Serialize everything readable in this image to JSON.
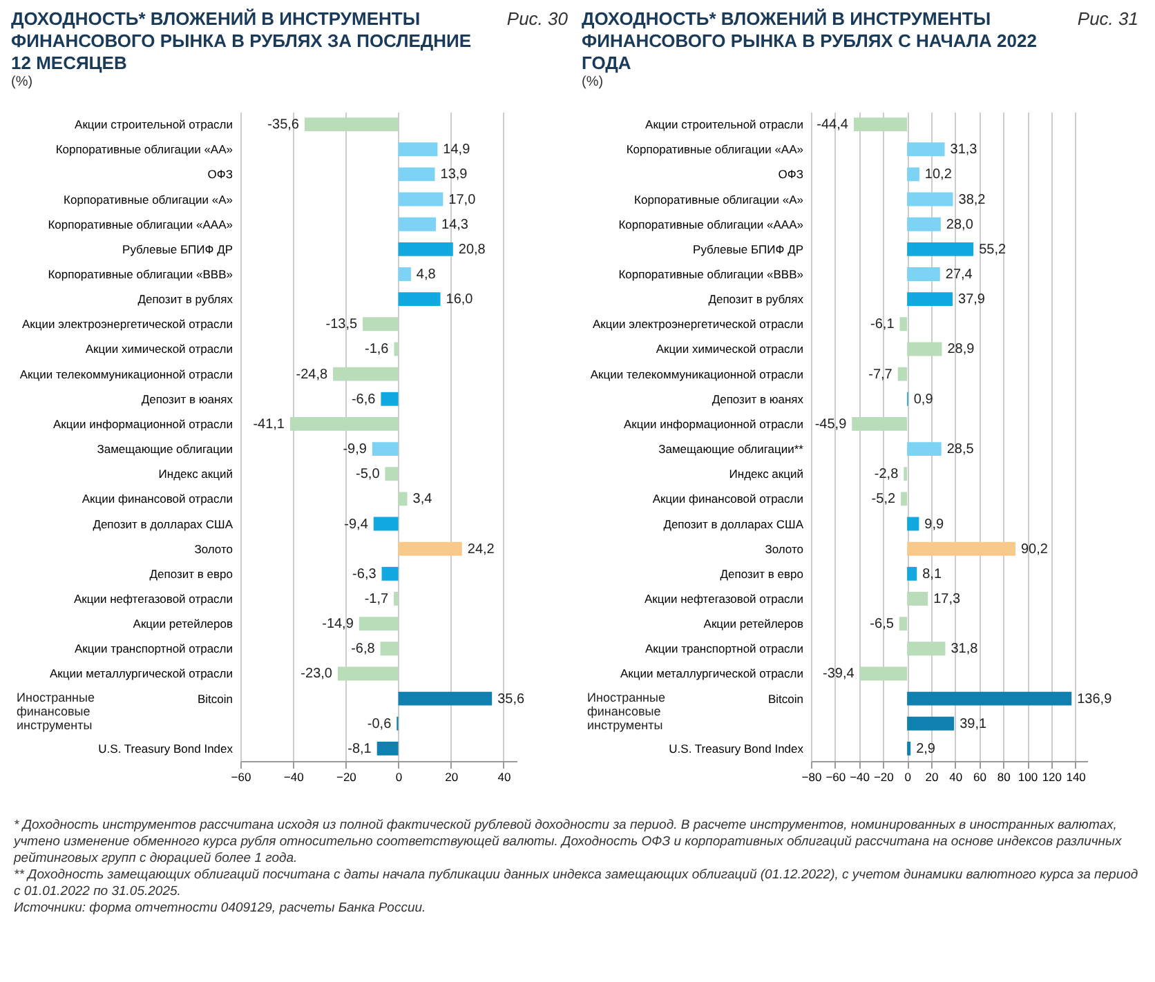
{
  "chart_data": [
    {
      "type": "bar",
      "orientation": "horizontal",
      "title": "ДОХОДНОСТЬ* ВЛОЖЕНИЙ В ИНСТРУМЕНТЫ ФИНАНСОВОГО РЫНКА В РУБЛЯХ ЗА ПОСЛЕДНИЕ 12 МЕСЯЦЕВ",
      "subtitle": "(%)",
      "categories": [
        "Акции строительной отрасли",
        "Корпоративные облигации «АА»",
        "ОФЗ",
        "Корпоративные облигации «А»",
        "Корпоративные облигации «ААА»",
        "Рублевые БПИФ ДР",
        "Корпоративные облигации «ВВВ»",
        "Депозит в рублях",
        "Акции электроэнергетической отрасли",
        "Акции химической отрасли",
        "Акции телекоммуникационной отрасли",
        "Депозит в юанях",
        "Акции информационной отрасли",
        "Замещающие облигации",
        "Индекс акций",
        "Акции финансовой отрасли",
        "Депозит в долларах США",
        "Золото",
        "Депозит в евро",
        "Акции нефтегазовой отрасли",
        "Акции ретейлеров",
        "Акции транспортной отрасли",
        "Акции металлургической отрасли",
        "Bitcoin",
        null,
        "U.S. Treasury Bond Index"
      ],
      "values": [
        -35.6,
        14.9,
        13.9,
        17.0,
        14.3,
        20.8,
        4.8,
        16.0,
        -13.5,
        -1.6,
        -24.8,
        -6.6,
        -41.1,
        -9.9,
        -5.0,
        3.4,
        -9.4,
        24.2,
        -6.3,
        -1.7,
        -14.9,
        -6.8,
        -23.0,
        35.6,
        -0.6,
        -8.1
      ],
      "value_labels": [
        "-35,6",
        "14,9",
        "13,9",
        "17,0",
        "14,3",
        "20,8",
        "4,8",
        "16,0",
        "-13,5",
        "-1,6",
        "-24,8",
        "-6,6",
        "-41,1",
        "-9,9",
        "-5,0",
        "3,4",
        "-9,4",
        "24,2",
        "-6,3",
        "-1,7",
        "-14,9",
        "-6,8",
        "-23,0",
        "35,6",
        "-0,6",
        "-8,1"
      ],
      "colors": [
        "#b9dcb9",
        "#7dd3f3",
        "#7dd3f3",
        "#7dd3f3",
        "#7dd3f3",
        "#12a8e0",
        "#7dd3f3",
        "#12a8e0",
        "#b9dcb9",
        "#b9dcb9",
        "#b9dcb9",
        "#12a8e0",
        "#b9dcb9",
        "#7dd3f3",
        "#b9dcb9",
        "#b9dcb9",
        "#12a8e0",
        "#f9c98a",
        "#12a8e0",
        "#b9dcb9",
        "#b9dcb9",
        "#b9dcb9",
        "#b9dcb9",
        "#1080b0",
        "#1080b0",
        "#1080b0"
      ],
      "xlim": [
        -60,
        45
      ],
      "xticks": [
        -60,
        -40,
        -20,
        0,
        20,
        40
      ],
      "grid": "x",
      "annotations": [
        "Рис. 30",
        "Иностранные финансовые инструменты",
        "* Доходность инструментов рассчитана исходя из полной фактической рублевой доходности за период. В расчете инструментов, номинированных в иностранных валютах, учтено изменение обменного курса рубля относительно соответствующей валюты. Доходность ОФЗ и корпоративных облигаций рассчитана на основе индексов различных рейтинговых групп с дюрацией более 1 года.",
        "** Доходность замещающих облигаций посчитана с даты начала публикации данных индекса замещающих облигаций (01.12.2022), с учетом динамики валютного курса за период с 01.01.2022 по 31.05.2025.",
        "Источники: форма отчетности 0409129, расчеты Банка России."
      ]
    },
    {
      "type": "bar",
      "orientation": "horizontal",
      "title": "ДОХОДНОСТЬ* ВЛОЖЕНИЙ В ИНСТРУМЕНТЫ ФИНАНСОВОГО РЫНКА В РУБЛЯХ С НАЧАЛА 2022 ГОДА",
      "subtitle": "(%)",
      "categories": [
        "Акции строительной отрасли",
        "Корпоративные облигации «АА»",
        "ОФЗ",
        "Корпоративные облигации «А»",
        "Корпоративные облигации «ААА»",
        "Рублевые БПИФ ДР",
        "Корпоративные облигации «ВВВ»",
        "Депозит в рублях",
        "Акции электроэнергетической отрасли",
        "Акции химической отрасли",
        "Акции телекоммуникационной отрасли",
        "Депозит в юанях",
        "Акции информационной отрасли",
        "Замещающие облигации**",
        "Индекс акций",
        "Акции финансовой отрасли",
        "Депозит в долларах США",
        "Золото",
        "Депозит в евро",
        "Акции нефтегазовой отрасли",
        "Акции ретейлеров",
        "Акции транспортной отрасли",
        "Акции металлургической отрасли",
        "Bitcoin",
        null,
        "U.S. Treasury Bond Index"
      ],
      "values": [
        -44.4,
        31.3,
        10.2,
        38.2,
        28.0,
        55.2,
        27.4,
        37.9,
        -6.1,
        28.9,
        -7.7,
        0.9,
        -45.9,
        28.5,
        -2.8,
        -5.2,
        9.9,
        90.2,
        8.1,
        17.3,
        -6.5,
        31.8,
        -39.4,
        136.9,
        39.1,
        2.9
      ],
      "value_labels": [
        "-44,4",
        "31,3",
        "10,2",
        "38,2",
        "28,0",
        "55,2",
        "27,4",
        "37,9",
        "-6,1",
        "28,9",
        "-7,7",
        "0,9",
        "-45,9",
        "28,5",
        "-2,8",
        "-5,2",
        "9,9",
        "90,2",
        "8,1",
        "17,3",
        "-6,5",
        "31,8",
        "-39,4",
        "136,9",
        "39,1",
        "2,9"
      ],
      "colors": [
        "#b9dcb9",
        "#7dd3f3",
        "#7dd3f3",
        "#7dd3f3",
        "#7dd3f3",
        "#12a8e0",
        "#7dd3f3",
        "#12a8e0",
        "#b9dcb9",
        "#b9dcb9",
        "#b9dcb9",
        "#12a8e0",
        "#b9dcb9",
        "#7dd3f3",
        "#b9dcb9",
        "#b9dcb9",
        "#12a8e0",
        "#f9c98a",
        "#12a8e0",
        "#b9dcb9",
        "#b9dcb9",
        "#b9dcb9",
        "#b9dcb9",
        "#1080b0",
        "#1080b0",
        "#1080b0"
      ],
      "xlim": [
        -80,
        150
      ],
      "xticks": [
        -80,
        -60,
        -40,
        -20,
        0,
        20,
        40,
        60,
        80,
        100,
        120,
        140
      ],
      "grid": "x",
      "annotations": [
        "Рис. 31",
        "Иностранные финансовые инструменты"
      ]
    }
  ]
}
